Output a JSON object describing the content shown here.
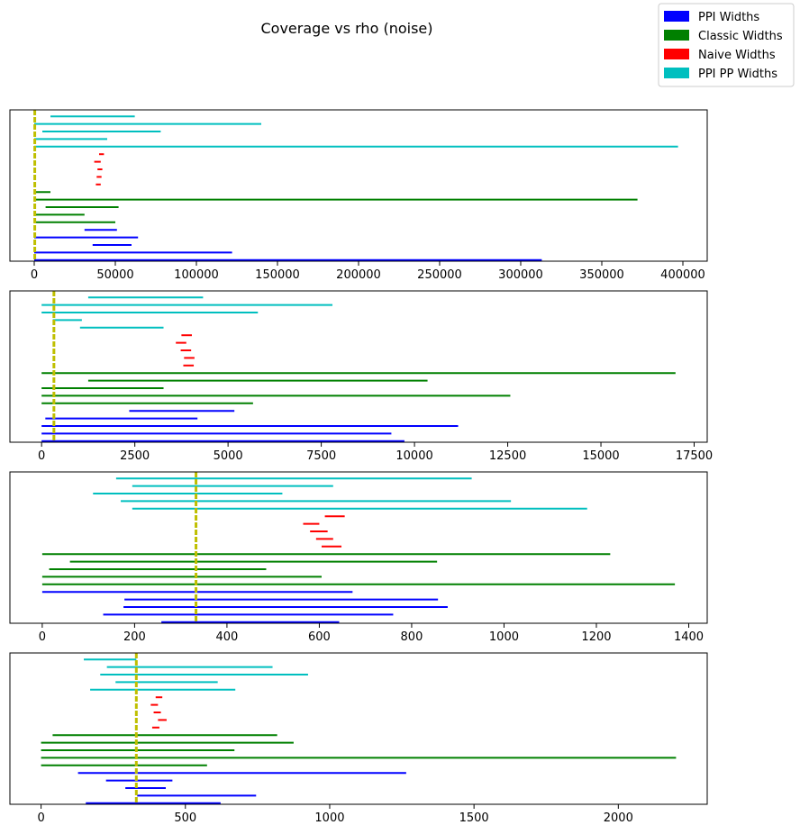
{
  "chart_data": {
    "title": "Coverage vs rho (noise)",
    "type": "interval",
    "legend": {
      "placement": "top-right",
      "entries": [
        {
          "label": "PPI Widths",
          "color": "#0000ff"
        },
        {
          "label": "Classic Widths",
          "color": "#008000"
        },
        {
          "label": "Naive Widths",
          "color": "#ff0000"
        },
        {
          "label": "PPI PP Widths",
          "color": "#00bfbf"
        }
      ]
    },
    "reference_line_color": "#bfbf00",
    "panels": [
      {
        "xlim": [
          -15000,
          415000
        ],
        "ticks": [
          0,
          50000,
          100000,
          150000,
          200000,
          250000,
          300000,
          350000,
          400000
        ],
        "tick_labels": [
          "0",
          "50000",
          "100000",
          "150000",
          "200000",
          "250000",
          "300000",
          "350000",
          "400000"
        ],
        "true_value": 330,
        "series": [
          {
            "name": "PPI PP Widths",
            "color": "#00bfbf",
            "intervals": [
              [
                10000,
                62000
              ],
              [
                0,
                140000
              ],
              [
                5000,
                78000
              ],
              [
                0,
                45000
              ],
              [
                0,
                397000
              ]
            ]
          },
          {
            "name": "Naive Widths",
            "color": "#ff0000",
            "intervals": [
              [
                40000,
                43000
              ],
              [
                37000,
                41000
              ],
              [
                39000,
                42000
              ],
              [
                38500,
                41500
              ],
              [
                38000,
                41000
              ]
            ]
          },
          {
            "name": "Classic Widths",
            "color": "#008000",
            "intervals": [
              [
                0,
                10000
              ],
              [
                0,
                372000
              ],
              [
                7000,
                52000
              ],
              [
                0,
                31000
              ],
              [
                0,
                50000
              ]
            ]
          },
          {
            "name": "PPI Widths",
            "color": "#0000ff",
            "intervals": [
              [
                31000,
                51000
              ],
              [
                0,
                64000
              ],
              [
                36000,
                60000
              ],
              [
                0,
                122000
              ],
              [
                0,
                313000
              ]
            ]
          }
        ]
      },
      {
        "xlim": [
          -850,
          17850
        ],
        "ticks": [
          0,
          2500,
          5000,
          7500,
          10000,
          12500,
          15000,
          17500
        ],
        "tick_labels": [
          "0",
          "2500",
          "5000",
          "7500",
          "10000",
          "12500",
          "15000",
          "17500"
        ],
        "true_value": 330,
        "series": [
          {
            "name": "PPI PP Widths",
            "color": "#00bfbf",
            "intervals": [
              [
                1250,
                4330
              ],
              [
                0,
                7800
              ],
              [
                0,
                5800
              ],
              [
                300,
                1080
              ],
              [
                1030,
                3270
              ]
            ]
          },
          {
            "name": "Naive Widths",
            "color": "#ff0000",
            "intervals": [
              [
                3750,
                4030
              ],
              [
                3600,
                3880
              ],
              [
                3730,
                4010
              ],
              [
                3820,
                4100
              ],
              [
                3800,
                4080
              ]
            ]
          },
          {
            "name": "Classic Widths",
            "color": "#008000",
            "intervals": [
              [
                0,
                17000
              ],
              [
                1250,
                10350
              ],
              [
                0,
                3270
              ],
              [
                0,
                12570
              ],
              [
                0,
                5670
              ]
            ]
          },
          {
            "name": "PPI Widths",
            "color": "#0000ff",
            "intervals": [
              [
                2350,
                5170
              ],
              [
                100,
                4180
              ],
              [
                0,
                11170
              ],
              [
                0,
                9380
              ],
              [
                0,
                9730
              ]
            ]
          }
        ]
      },
      {
        "xlim": [
          -70,
          1440
        ],
        "ticks": [
          0,
          200,
          400,
          600,
          800,
          1000,
          1200,
          1400
        ],
        "tick_labels": [
          "0",
          "200",
          "400",
          "600",
          "800",
          "1000",
          "1200",
          "1400"
        ],
        "true_value": 333,
        "series": [
          {
            "name": "PPI PP Widths",
            "color": "#00bfbf",
            "intervals": [
              [
                160,
                930
              ],
              [
                195,
                630
              ],
              [
                110,
                520
              ],
              [
                170,
                1015
              ],
              [
                195,
                1180
              ]
            ]
          },
          {
            "name": "Naive Widths",
            "color": "#ff0000",
            "intervals": [
              [
                612,
                655
              ],
              [
                565,
                600
              ],
              [
                580,
                618
              ],
              [
                593,
                630
              ],
              [
                605,
                648
              ]
            ]
          },
          {
            "name": "Classic Widths",
            "color": "#008000",
            "intervals": [
              [
                0,
                1230
              ],
              [
                60,
                855
              ],
              [
                15,
                485
              ],
              [
                0,
                605
              ],
              [
                0,
                1370
              ]
            ]
          },
          {
            "name": "PPI Widths",
            "color": "#0000ff",
            "intervals": [
              [
                0,
                672
              ],
              [
                178,
                857
              ],
              [
                176,
                878
              ],
              [
                132,
                760
              ],
              [
                258,
                643
              ]
            ]
          }
        ]
      },
      {
        "xlim": [
          -108,
          2308
        ],
        "ticks": [
          0,
          500,
          1000,
          1500,
          2000
        ],
        "tick_labels": [
          "0",
          "500",
          "1000",
          "1500",
          "2000"
        ],
        "true_value": 330,
        "series": [
          {
            "name": "PPI PP Widths",
            "color": "#00bfbf",
            "intervals": [
              [
                148,
                330
              ],
              [
                228,
                802
              ],
              [
                205,
                925
              ],
              [
                258,
                612
              ],
              [
                170,
                673
              ]
            ]
          },
          {
            "name": "Naive Widths",
            "color": "#ff0000",
            "intervals": [
              [
                397,
                420
              ],
              [
                380,
                405
              ],
              [
                390,
                415
              ],
              [
                405,
                435
              ],
              [
                385,
                410
              ]
            ]
          },
          {
            "name": "Classic Widths",
            "color": "#008000",
            "intervals": [
              [
                40,
                818
              ],
              [
                0,
                875
              ],
              [
                0,
                670
              ],
              [
                0,
                2200
              ],
              [
                0,
                575
              ]
            ]
          },
          {
            "name": "PPI Widths",
            "color": "#0000ff",
            "intervals": [
              [
                128,
                1265
              ],
              [
                225,
                455
              ],
              [
                292,
                432
              ],
              [
                333,
                745
              ],
              [
                155,
                622
              ]
            ]
          }
        ]
      }
    ]
  }
}
